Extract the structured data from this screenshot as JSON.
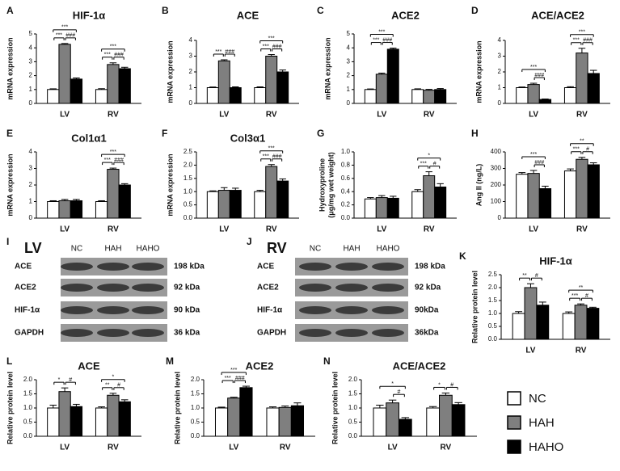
{
  "legend": {
    "entries": [
      {
        "name": "NC",
        "color": "#ffffff"
      },
      {
        "name": "HAH",
        "color": "#7f7f7f"
      },
      {
        "name": "HAHO",
        "color": "#000000"
      }
    ]
  },
  "blots": [
    {
      "panel": "I",
      "title": "LV",
      "lanes": [
        "NC",
        "HAH",
        "HAHO"
      ],
      "rows": [
        {
          "protein": "ACE",
          "size": "198 kDa"
        },
        {
          "protein": "ACE2",
          "size": "92 kDa"
        },
        {
          "protein": "HIF-1α",
          "size": "90 kDa"
        },
        {
          "protein": "GAPDH",
          "size": "36 kDa"
        }
      ]
    },
    {
      "panel": "J",
      "title": "RV",
      "lanes": [
        "NC",
        "HAH",
        "HAHO"
      ],
      "rows": [
        {
          "protein": "ACE",
          "size": "198 kDa"
        },
        {
          "protein": "ACE2",
          "size": "92 kDa"
        },
        {
          "protein": "HIF-1α",
          "size": "90kDa"
        },
        {
          "protein": "GAPDH",
          "size": "36kDa"
        }
      ]
    }
  ],
  "chart_data": [
    {
      "type": "bar",
      "panel": "A",
      "title": "HIF-1α",
      "ylabel": "mRNA expression",
      "categories": [
        "LV",
        "RV"
      ],
      "ylim": [
        0,
        5
      ],
      "yticks": [
        0,
        1,
        2,
        3,
        4,
        5
      ],
      "series": [
        {
          "values": [
            1.0,
            1.0
          ],
          "errors": [
            0.05,
            0.06
          ]
        },
        {
          "values": [
            4.25,
            2.8
          ],
          "errors": [
            0.06,
            0.12
          ]
        },
        {
          "values": [
            1.75,
            2.5
          ],
          "errors": [
            0.08,
            0.1
          ]
        }
      ],
      "annotations": [
        {
          "text": "***",
          "category": 0,
          "between": [
            0,
            1
          ]
        },
        {
          "text": "###",
          "category": 0,
          "between": [
            1,
            2
          ]
        },
        {
          "text": "***",
          "category": 0,
          "between": [
            0,
            2
          ]
        },
        {
          "text": "***",
          "category": 1,
          "between": [
            0,
            1
          ]
        },
        {
          "text": "###",
          "category": 1,
          "between": [
            1,
            2
          ]
        },
        {
          "text": "***",
          "category": 1,
          "between": [
            0,
            2
          ]
        }
      ]
    },
    {
      "type": "bar",
      "panel": "B",
      "title": "ACE",
      "ylabel": "mRNA expression",
      "categories": [
        "LV",
        "RV"
      ],
      "ylim": [
        0,
        4
      ],
      "yticks": [
        0,
        1,
        2,
        3,
        4
      ],
      "series": [
        {
          "values": [
            1.0,
            1.0
          ],
          "errors": [
            0.04,
            0.05
          ]
        },
        {
          "values": [
            2.7,
            3.0
          ],
          "errors": [
            0.07,
            0.1
          ]
        },
        {
          "values": [
            1.0,
            2.0
          ],
          "errors": [
            0.05,
            0.12
          ]
        }
      ],
      "annotations": [
        {
          "text": "***",
          "category": 0,
          "between": [
            0,
            1
          ]
        },
        {
          "text": "###",
          "category": 0,
          "between": [
            1,
            2
          ]
        },
        {
          "text": "***",
          "category": 1,
          "between": [
            0,
            1
          ]
        },
        {
          "text": "###",
          "category": 1,
          "between": [
            1,
            2
          ]
        },
        {
          "text": "***",
          "category": 1,
          "between": [
            0,
            2
          ]
        }
      ]
    },
    {
      "type": "bar",
      "panel": "C",
      "title": "ACE2",
      "ylabel": "mRNA expression",
      "categories": [
        "LV",
        "RV"
      ],
      "ylim": [
        0,
        5
      ],
      "yticks": [
        0,
        1,
        2,
        3,
        4,
        5
      ],
      "series": [
        {
          "values": [
            1.0,
            1.0
          ],
          "errors": [
            0.04,
            0.05
          ]
        },
        {
          "values": [
            2.1,
            0.95
          ],
          "errors": [
            0.08,
            0.06
          ]
        },
        {
          "values": [
            3.9,
            1.0
          ],
          "errors": [
            0.08,
            0.07
          ]
        }
      ],
      "annotations": [
        {
          "text": "***",
          "category": 0,
          "between": [
            0,
            1
          ]
        },
        {
          "text": "###",
          "category": 0,
          "between": [
            1,
            2
          ]
        },
        {
          "text": "***",
          "category": 0,
          "between": [
            0,
            2
          ]
        }
      ]
    },
    {
      "type": "bar",
      "panel": "D",
      "title": "ACE/ACE2",
      "ylabel": "mRNA expression",
      "categories": [
        "LV",
        "RV"
      ],
      "ylim": [
        0,
        4
      ],
      "yticks": [
        0,
        1,
        2,
        3,
        4
      ],
      "series": [
        {
          "values": [
            1.0,
            1.0
          ],
          "errors": [
            0.04,
            0.06
          ]
        },
        {
          "values": [
            1.2,
            3.2
          ],
          "errors": [
            0.08,
            0.3
          ]
        },
        {
          "values": [
            0.25,
            1.9
          ],
          "errors": [
            0.03,
            0.2
          ]
        }
      ],
      "annotations": [
        {
          "text": "***",
          "category": 0,
          "between": [
            0,
            2
          ]
        },
        {
          "text": "###",
          "category": 0,
          "between": [
            1,
            2
          ]
        },
        {
          "text": "***",
          "category": 1,
          "between": [
            0,
            1
          ]
        },
        {
          "text": "###",
          "category": 1,
          "between": [
            1,
            2
          ]
        },
        {
          "text": "***",
          "category": 1,
          "between": [
            0,
            2
          ]
        }
      ]
    },
    {
      "type": "bar",
      "panel": "E",
      "title": "Col1α1",
      "ylabel": "mRNA expression",
      "categories": [
        "LV",
        "RV"
      ],
      "ylim": [
        0,
        4
      ],
      "yticks": [
        0,
        1,
        2,
        3,
        4
      ],
      "series": [
        {
          "values": [
            1.0,
            1.0
          ],
          "errors": [
            0.05,
            0.05
          ]
        },
        {
          "values": [
            1.05,
            2.95
          ],
          "errors": [
            0.08,
            0.07
          ]
        },
        {
          "values": [
            1.05,
            2.0
          ],
          "errors": [
            0.08,
            0.08
          ]
        }
      ],
      "annotations": [
        {
          "text": "***",
          "category": 1,
          "between": [
            0,
            1
          ]
        },
        {
          "text": "###",
          "category": 1,
          "between": [
            1,
            2
          ]
        },
        {
          "text": "***",
          "category": 1,
          "between": [
            0,
            2
          ]
        }
      ]
    },
    {
      "type": "bar",
      "panel": "F",
      "title": "Col3α1",
      "ylabel": "mRNA expression",
      "categories": [
        "LV",
        "RV"
      ],
      "ylim": [
        0,
        2.5
      ],
      "yticks": [
        {
          "value": 0,
          "label": "0.0"
        },
        {
          "value": 0.5,
          "label": "0.5"
        },
        {
          "value": 1,
          "label": "1.0"
        },
        {
          "value": 1.5,
          "label": "1.5"
        },
        {
          "value": 2,
          "label": "2.0"
        },
        {
          "value": 2.5,
          "label": "2.5"
        }
      ],
      "series": [
        {
          "values": [
            1.0,
            1.0
          ],
          "errors": [
            0.03,
            0.05
          ]
        },
        {
          "values": [
            1.05,
            1.95
          ],
          "errors": [
            0.1,
            0.07
          ]
        },
        {
          "values": [
            1.05,
            1.4
          ],
          "errors": [
            0.08,
            0.08
          ]
        }
      ],
      "annotations": [
        {
          "text": "***",
          "category": 1,
          "between": [
            0,
            1
          ]
        },
        {
          "text": "###",
          "category": 1,
          "between": [
            1,
            2
          ]
        },
        {
          "text": "***",
          "category": 1,
          "between": [
            0,
            2
          ]
        }
      ]
    },
    {
      "type": "bar",
      "panel": "G",
      "title": "",
      "ylabel": [
        "Hydroxyproline",
        "(μg/mg wet weight)"
      ],
      "categories": [
        "LV",
        "RV"
      ],
      "ylim": [
        0,
        1
      ],
      "yticks": [
        {
          "value": 0,
          "label": "0.0"
        },
        {
          "value": 0.2,
          "label": "0.2"
        },
        {
          "value": 0.4,
          "label": "0.4"
        },
        {
          "value": 0.6,
          "label": "0.6"
        },
        {
          "value": 0.8,
          "label": "0.8"
        },
        {
          "value": 1,
          "label": "1.0"
        }
      ],
      "series": [
        {
          "values": [
            0.29,
            0.4
          ],
          "errors": [
            0.02,
            0.03
          ]
        },
        {
          "values": [
            0.31,
            0.64
          ],
          "errors": [
            0.03,
            0.06
          ]
        },
        {
          "values": [
            0.3,
            0.47
          ],
          "errors": [
            0.03,
            0.05
          ]
        }
      ],
      "annotations": [
        {
          "text": "***",
          "category": 1,
          "between": [
            0,
            1
          ]
        },
        {
          "text": "#",
          "category": 1,
          "between": [
            1,
            2
          ]
        },
        {
          "text": "*",
          "category": 1,
          "between": [
            0,
            2
          ]
        }
      ]
    },
    {
      "type": "bar",
      "panel": "H",
      "title": "",
      "ylabel": "Ang II (ng/L)",
      "categories": [
        "LV",
        "RV"
      ],
      "ylim": [
        0,
        400
      ],
      "yticks": [
        0,
        100,
        200,
        300,
        400
      ],
      "series": [
        {
          "values": [
            265,
            285
          ],
          "errors": [
            10,
            12
          ]
        },
        {
          "values": [
            270,
            355
          ],
          "errors": [
            18,
            12
          ]
        },
        {
          "values": [
            178,
            322
          ],
          "errors": [
            15,
            12
          ]
        }
      ],
      "annotations": [
        {
          "text": "***",
          "category": 0,
          "between": [
            0,
            2
          ]
        },
        {
          "text": "###",
          "category": 0,
          "between": [
            1,
            2
          ]
        },
        {
          "text": "***",
          "category": 1,
          "between": [
            0,
            1
          ]
        },
        {
          "text": "#",
          "category": 1,
          "between": [
            1,
            2
          ]
        },
        {
          "text": "**",
          "category": 1,
          "between": [
            0,
            2
          ]
        }
      ]
    },
    {
      "type": "bar",
      "panel": "K",
      "title": "HIF-1α",
      "ylabel": "Relative protein level",
      "categories": [
        "LV",
        "RV"
      ],
      "ylim": [
        0,
        2.5
      ],
      "yticks": [
        {
          "value": 0,
          "label": "0.0"
        },
        {
          "value": 0.5,
          "label": "0.5"
        },
        {
          "value": 1,
          "label": "1.0"
        },
        {
          "value": 1.5,
          "label": "1.5"
        },
        {
          "value": 2,
          "label": "2.0"
        },
        {
          "value": 2.5,
          "label": "2.5"
        }
      ],
      "series": [
        {
          "values": [
            1.0,
            1.0
          ],
          "errors": [
            0.07,
            0.06
          ]
        },
        {
          "values": [
            2.0,
            1.32
          ],
          "errors": [
            0.15,
            0.05
          ]
        },
        {
          "values": [
            1.32,
            1.2
          ],
          "errors": [
            0.12,
            0.04
          ]
        }
      ],
      "annotations": [
        {
          "text": "**",
          "category": 0,
          "between": [
            0,
            1
          ]
        },
        {
          "text": "#",
          "category": 0,
          "between": [
            1,
            2
          ]
        },
        {
          "text": "***",
          "category": 1,
          "between": [
            0,
            1
          ]
        },
        {
          "text": "#",
          "category": 1,
          "between": [
            1,
            2
          ]
        },
        {
          "text": "**",
          "category": 1,
          "between": [
            0,
            2
          ]
        }
      ]
    },
    {
      "type": "bar",
      "panel": "L",
      "title": "ACE",
      "ylabel": "Relative protein level",
      "categories": [
        "LV",
        "RV"
      ],
      "ylim": [
        0,
        2
      ],
      "yticks": [
        {
          "value": 0,
          "label": "0.0"
        },
        {
          "value": 0.5,
          "label": "0.5"
        },
        {
          "value": 1,
          "label": "1.0"
        },
        {
          "value": 1.5,
          "label": "1.5"
        },
        {
          "value": 2,
          "label": "2.0"
        }
      ],
      "series": [
        {
          "values": [
            1.0,
            1.0
          ],
          "errors": [
            0.1,
            0.04
          ]
        },
        {
          "values": [
            1.58,
            1.45
          ],
          "errors": [
            0.13,
            0.07
          ]
        },
        {
          "values": [
            1.05,
            1.22
          ],
          "errors": [
            0.08,
            0.07
          ]
        }
      ],
      "annotations": [
        {
          "text": "*",
          "category": 0,
          "between": [
            0,
            1
          ]
        },
        {
          "text": "#",
          "category": 0,
          "between": [
            1,
            2
          ]
        },
        {
          "text": "**",
          "category": 1,
          "between": [
            0,
            1
          ]
        },
        {
          "text": "#",
          "category": 1,
          "between": [
            1,
            2
          ]
        },
        {
          "text": "*",
          "category": 1,
          "between": [
            0,
            2
          ]
        }
      ]
    },
    {
      "type": "bar",
      "panel": "M",
      "title": "ACE2",
      "ylabel": "Relative protein level",
      "categories": [
        "LV",
        "RV"
      ],
      "ylim": [
        0,
        2
      ],
      "yticks": [
        {
          "value": 0,
          "label": "0.0"
        },
        {
          "value": 0.5,
          "label": "0.5"
        },
        {
          "value": 1,
          "label": "1.0"
        },
        {
          "value": 1.5,
          "label": "1.5"
        },
        {
          "value": 2,
          "label": "2.0"
        }
      ],
      "series": [
        {
          "values": [
            1.0,
            1.0
          ],
          "errors": [
            0.03,
            0.04
          ]
        },
        {
          "values": [
            1.35,
            1.02
          ],
          "errors": [
            0.03,
            0.05
          ]
        },
        {
          "values": [
            1.72,
            1.08
          ],
          "errors": [
            0.05,
            0.1
          ]
        }
      ],
      "annotations": [
        {
          "text": "***",
          "category": 0,
          "between": [
            0,
            1
          ]
        },
        {
          "text": "###",
          "category": 0,
          "between": [
            1,
            2
          ]
        },
        {
          "text": "***",
          "category": 0,
          "between": [
            0,
            2
          ]
        }
      ]
    },
    {
      "type": "bar",
      "panel": "N",
      "title": "ACE/ACE2",
      "ylabel": "Relative protein level",
      "categories": [
        "LV",
        "RV"
      ],
      "ylim": [
        0,
        2
      ],
      "yticks": [
        {
          "value": 0,
          "label": "0.0"
        },
        {
          "value": 0.5,
          "label": "0.5"
        },
        {
          "value": 1,
          "label": "1.0"
        },
        {
          "value": 1.5,
          "label": "1.5"
        },
        {
          "value": 2,
          "label": "2.0"
        }
      ],
      "series": [
        {
          "values": [
            1.0,
            1.0
          ],
          "errors": [
            0.1,
            0.05
          ]
        },
        {
          "values": [
            1.18,
            1.45
          ],
          "errors": [
            0.1,
            0.08
          ]
        },
        {
          "values": [
            0.6,
            1.12
          ],
          "errors": [
            0.06,
            0.07
          ]
        }
      ],
      "annotations": [
        {
          "text": "*",
          "category": 0,
          "between": [
            0,
            2
          ]
        },
        {
          "text": "#",
          "category": 0,
          "between": [
            1,
            2
          ]
        },
        {
          "text": "*",
          "category": 1,
          "between": [
            0,
            1
          ]
        },
        {
          "text": "#",
          "category": 1,
          "between": [
            1,
            2
          ]
        }
      ]
    }
  ]
}
